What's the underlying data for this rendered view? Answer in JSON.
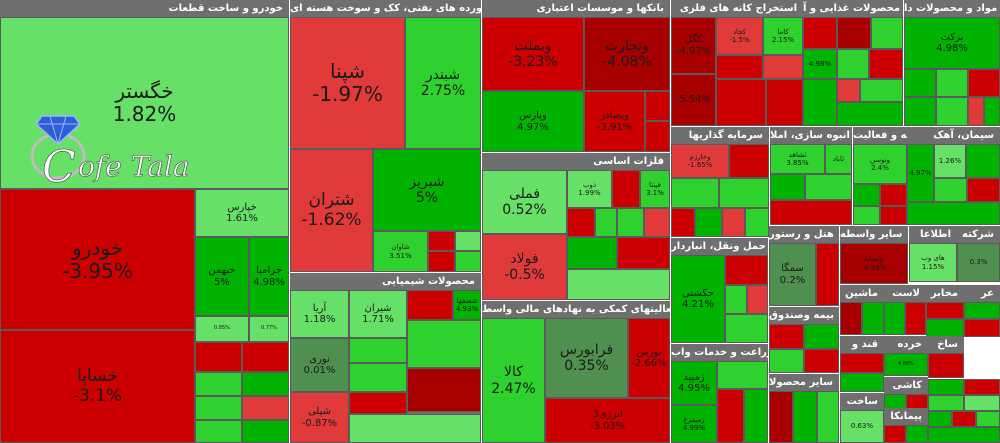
{
  "colors": {
    "up_strong": "#00b300",
    "up": "#2ed12e",
    "up_light": "#66e066",
    "down_light": "#e03a3a",
    "down": "#cc0000",
    "down_strong": "#a80000",
    "neutral": "#4f8f4f",
    "frame": "#6f6f6f"
  },
  "watermark": {
    "text_prefix": "C",
    "text": "ofe Tala"
  },
  "chart_data": {
    "type": "treemap",
    "metric": "daily price change (%)",
    "sectors": [
      {
        "id": "s1",
        "title": "خودرو و ساخت قطعات",
        "cells": [
          {
            "name": "خگستر",
            "pct": "1.82%",
            "v": 1.82
          },
          {
            "name": "خودرو",
            "pct": "-3.95%",
            "v": -3.95
          },
          {
            "name": "خساپا",
            "pct": "-3.1%",
            "v": -3.1
          },
          {
            "name": "خپارس",
            "pct": "1.61%",
            "v": 1.61
          },
          {
            "name": "خبهمن",
            "pct": "5%",
            "v": 5
          },
          {
            "name": "خزامیا",
            "pct": "4.98%",
            "v": 4.98
          },
          {
            "name": "",
            "pct": "0.85%",
            "v": 0.85
          },
          {
            "name": "",
            "pct": "0.77%",
            "v": 0.77
          },
          {
            "name": "",
            "pct": "",
            "v": -2.1
          },
          {
            "name": "",
            "pct": "",
            "v": -3.2
          },
          {
            "name": "",
            "pct": "",
            "v": 2.4
          },
          {
            "name": "",
            "pct": "",
            "v": 4.9
          },
          {
            "name": "",
            "pct": "",
            "v": 3.1
          },
          {
            "name": "",
            "pct": "",
            "v": -1.5
          },
          {
            "name": "",
            "pct": "",
            "v": 2.8
          },
          {
            "name": "",
            "pct": "",
            "v": 4.2
          }
        ]
      },
      {
        "id": "s2",
        "title": "فراورده های نفتی، کک و سوخت هسته ای",
        "cells": [
          {
            "name": "شپنا",
            "pct": "-1.97%",
            "v": -1.97
          },
          {
            "name": "شبندر",
            "pct": "2.75%",
            "v": 2.75
          },
          {
            "name": "شتران",
            "pct": "-1.62%",
            "v": -1.62
          },
          {
            "name": "شبریز",
            "pct": "5%",
            "v": 5
          },
          {
            "name": "شاوان",
            "pct": "3.51%",
            "v": 3.51
          },
          {
            "name": "",
            "pct": "",
            "v": -2.5
          },
          {
            "name": "",
            "pct": "",
            "v": 1.3
          },
          {
            "name": "",
            "pct": "",
            "v": -3.4
          },
          {
            "name": "",
            "pct": "",
            "v": 2.2
          }
        ]
      },
      {
        "id": "s3",
        "title": "بانکها و موسسات اعتباری",
        "cells": [
          {
            "name": "وبملت",
            "pct": "-3.23%",
            "v": -3.23
          },
          {
            "name": "وتجارت",
            "pct": "-4.08%",
            "v": -4.08
          },
          {
            "name": "وپارس",
            "pct": "4.97%",
            "v": 4.97
          },
          {
            "name": "وبصادر",
            "pct": "-3.91%",
            "v": -3.91
          },
          {
            "name": "",
            "pct": "",
            "v": -2.0
          },
          {
            "name": "",
            "pct": "",
            "v": -2.8
          }
        ]
      },
      {
        "id": "s4",
        "title": "استخراج کانه های فلزی",
        "cells": [
          {
            "name": "کگل",
            "pct": "-4.97%",
            "v": -4.97
          },
          {
            "name": "کچاد",
            "pct": "-1.5%",
            "v": -1.5
          },
          {
            "name": "کاما",
            "pct": "2.15%",
            "v": 2.15
          },
          {
            "name": "",
            "pct": "",
            "v": -3.1
          },
          {
            "name": "",
            "pct": "",
            "v": -1.9
          },
          {
            "name": "",
            "pct": "-5.54%",
            "v": -5.54
          },
          {
            "name": "",
            "pct": "",
            "v": -2.6
          },
          {
            "name": "",
            "pct": "",
            "v": -3.7
          }
        ]
      },
      {
        "id": "s5",
        "title": "محصولات غذایی و آ",
        "cells": [
          {
            "name": "",
            "pct": "",
            "v": -3.6
          },
          {
            "name": "",
            "pct": "",
            "v": -4.1
          },
          {
            "name": "",
            "pct": "",
            "v": 2.6
          },
          {
            "name": "",
            "pct": "4.98%",
            "v": 4.98
          },
          {
            "name": "",
            "pct": "",
            "v": 3.4
          },
          {
            "name": "",
            "pct": "",
            "v": -2.2
          },
          {
            "name": "",
            "pct": "",
            "v": 4.5
          },
          {
            "name": "",
            "pct": "",
            "v": -1.8
          },
          {
            "name": "",
            "pct": "",
            "v": 2.9
          },
          {
            "name": "",
            "pct": "",
            "v": 4.1
          }
        ]
      },
      {
        "id": "s6",
        "title": "مواد و محصولات دا",
        "cells": [
          {
            "name": "برکت",
            "pct": "4.98%",
            "v": 4.98
          },
          {
            "name": "",
            "pct": "",
            "v": 4.3
          },
          {
            "name": "",
            "pct": "",
            "v": 3.9
          },
          {
            "name": "",
            "pct": "",
            "v": -2.6
          },
          {
            "name": "",
            "pct": "",
            "v": 4.7
          },
          {
            "name": "",
            "pct": "",
            "v": 3.3
          },
          {
            "name": "",
            "pct": "",
            "v": -1.4
          },
          {
            "name": "",
            "pct": "",
            "v": 4.9
          }
        ]
      },
      {
        "id": "s7",
        "title": "فلزات اساسی",
        "cells": [
          {
            "name": "فملی",
            "pct": "0.52%",
            "v": 0.52
          },
          {
            "name": "فولاد",
            "pct": "-0.5%",
            "v": -0.5
          },
          {
            "name": "ذوب",
            "pct": "1.99%",
            "v": 1.99
          },
          {
            "name": "",
            "pct": "",
            "v": -3.5
          },
          {
            "name": "فپنتا",
            "pct": "3.1%",
            "v": 3.1
          },
          {
            "name": "",
            "pct": "",
            "v": -2.7
          },
          {
            "name": "",
            "pct": "",
            "v": 3.8
          },
          {
            "name": "",
            "pct": "",
            "v": 2.2
          },
          {
            "name": "",
            "pct": "",
            "v": -1.6
          },
          {
            "name": "",
            "pct": "",
            "v": 4.1
          },
          {
            "name": "",
            "pct": "",
            "v": -3.0
          },
          {
            "name": "",
            "pct": "",
            "v": 1.1
          }
        ]
      },
      {
        "id": "s8",
        "title": "سرمایه گذاریها",
        "cells": [
          {
            "name": "وخارزم",
            "pct": "-1.65%",
            "v": -1.65
          },
          {
            "name": "",
            "pct": "",
            "v": -2.3
          },
          {
            "name": "",
            "pct": "",
            "v": 3.6
          },
          {
            "name": "",
            "pct": "",
            "v": 2.4
          },
          {
            "name": "",
            "pct": "",
            "v": -3.4
          },
          {
            "name": "",
            "pct": "",
            "v": 4.2
          },
          {
            "name": "",
            "pct": "",
            "v": -1.2
          },
          {
            "name": "",
            "pct": "",
            "v": 3.1
          }
        ]
      },
      {
        "id": "s9",
        "title": "انبوه سازی، املا",
        "cells": [
          {
            "name": "ثشاهد",
            "pct": "3.85%",
            "v": 3.85
          },
          {
            "name": "ثاباد",
            "pct": "",
            "v": 2.2
          },
          {
            "name": "",
            "pct": "",
            "v": 4.1
          },
          {
            "name": "",
            "pct": "",
            "v": 2.37
          },
          {
            "name": "",
            "pct": "",
            "v": -2.9
          }
        ]
      },
      {
        "id": "s10",
        "title": "رایانه و فعالیت",
        "cells": [
          {
            "name": "ونوسن",
            "pct": "2.4%",
            "v": 2.4
          },
          {
            "name": "",
            "pct": "",
            "v": 4.4
          },
          {
            "name": "",
            "pct": "",
            "v": -2.2
          },
          {
            "name": "",
            "pct": "",
            "v": 3.0
          },
          {
            "name": "",
            "pct": "",
            "v": -3.8
          }
        ]
      },
      {
        "id": "s11",
        "title": "سیمان، آهک",
        "cells": [
          {
            "name": "",
            "pct": "4.97%",
            "v": 4.97
          },
          {
            "name": "",
            "pct": "1.26%",
            "v": 1.26
          },
          {
            "name": "",
            "pct": "",
            "v": 4.2
          },
          {
            "name": "",
            "pct": "",
            "v": 3.2
          },
          {
            "name": "",
            "pct": "",
            "v": -2.9
          },
          {
            "name": "",
            "pct": "",
            "v": 4.6
          }
        ]
      },
      {
        "id": "s12",
        "title": "محصولات شیمیایی",
        "cells": [
          {
            "name": "آریا",
            "pct": "1.18%",
            "v": 1.18
          },
          {
            "name": "شیران",
            "pct": "1.71%",
            "v": 1.71
          },
          {
            "name": "",
            "pct": "",
            "v": -3.6
          },
          {
            "name": "شصفها",
            "pct": "4.93%",
            "v": 4.93
          },
          {
            "name": "نوری",
            "pct": "0.01%",
            "v": 0.01
          },
          {
            "name": "",
            "pct": "",
            "v": 2.5
          },
          {
            "name": "",
            "pct": "",
            "v": 3.3
          },
          {
            "name": "شپلی",
            "pct": "-0.87%",
            "v": -0.87
          },
          {
            "name": "",
            "pct": "",
            "v": -2.1
          },
          {
            "name": "",
            "pct": "",
            "v": 3.9
          },
          {
            "name": "",
            "pct": "",
            "v": -4.0
          },
          {
            "name": "",
            "pct": "",
            "v": 1.8
          }
        ]
      },
      {
        "id": "s13",
        "title": "فعالیتهای کمکی به نهادهای مالی واسط",
        "cells": [
          {
            "name": "کالا",
            "pct": "2.47%",
            "v": 2.47
          },
          {
            "name": "فرابورس",
            "pct": "0.35%",
            "v": 0.35
          },
          {
            "name": "بورس",
            "pct": "-2.66%",
            "v": -2.66
          },
          {
            "name": "انرژی3",
            "pct": "-3.03%",
            "v": -3.03
          }
        ]
      },
      {
        "id": "s14",
        "title": "حمل ونقل، انباردار",
        "cells": [
          {
            "name": "حکشتی",
            "pct": "4.21%",
            "v": 4.21
          },
          {
            "name": "",
            "pct": "",
            "v": -3.2
          },
          {
            "name": "",
            "pct": "",
            "v": 2.6
          },
          {
            "name": "",
            "pct": "",
            "v": -1.7
          },
          {
            "name": "",
            "pct": "",
            "v": 3.9
          }
        ]
      },
      {
        "id": "s15",
        "title": "هتل و رستور",
        "cells": [
          {
            "name": "سمگا",
            "pct": "0.2%",
            "v": 0.2
          },
          {
            "name": "",
            "pct": "",
            "v": -2.8
          }
        ]
      },
      {
        "id": "s16",
        "title": "سایر واسطه",
        "cells": [
          {
            "name": "ولساپا",
            "pct": "-4.99%",
            "v": -4.99
          }
        ]
      },
      {
        "id": "s17",
        "title": "اطلاعا",
        "cells": [
          {
            "name": "های وب",
            "pct": "1.15%",
            "v": 1.15
          }
        ]
      },
      {
        "id": "s18",
        "title": "شرکته",
        "cells": [
          {
            "name": "",
            "pct": "0.3%",
            "v": 0.3
          }
        ]
      },
      {
        "id": "s19",
        "title": "زراعت و خدمات واب",
        "cells": [
          {
            "name": "زمپید",
            "pct": "4.95%",
            "v": 4.95
          },
          {
            "name": "زمیمرغ",
            "pct": "4.99%",
            "v": 4.99
          },
          {
            "name": "",
            "pct": "",
            "v": 3.3
          },
          {
            "name": "",
            "pct": "",
            "v": -2.4
          },
          {
            "name": "",
            "pct": "",
            "v": 4.6
          }
        ]
      },
      {
        "id": "s20",
        "title": "بیمه وصندوق",
        "cells": [
          {
            "name": "",
            "pct": "",
            "v": -3.6
          },
          {
            "name": "",
            "pct": "",
            "v": 4.84
          },
          {
            "name": "",
            "pct": "",
            "v": 2.5
          },
          {
            "name": "",
            "pct": "",
            "v": -2.0
          }
        ]
      },
      {
        "id": "s21",
        "title": "ماشین",
        "cells": [
          {
            "name": "",
            "pct": "",
            "v": -4.3
          },
          {
            "name": "",
            "pct": "",
            "v": 4.5
          }
        ]
      },
      {
        "id": "s22",
        "title": "لاست",
        "cells": [
          {
            "name": "",
            "pct": "",
            "v": 4.6
          },
          {
            "name": "",
            "pct": "",
            "v": -3.0
          }
        ]
      },
      {
        "id": "s23",
        "title": "مخابر",
        "cells": [
          {
            "name": "",
            "pct": "",
            "v": -3.9
          },
          {
            "name": "",
            "pct": "",
            "v": 4.2
          }
        ]
      },
      {
        "id": "s24",
        "title": "عر",
        "cells": [
          {
            "name": "",
            "pct": "",
            "v": 4.8
          },
          {
            "name": "",
            "pct": "",
            "v": -2.5
          }
        ]
      },
      {
        "id": "s25",
        "title": "قند و",
        "cells": [
          {
            "name": "",
            "pct": "",
            "v": -3.3
          },
          {
            "name": "",
            "pct": "",
            "v": 4.0
          }
        ]
      },
      {
        "id": "s26",
        "title": "خرده",
        "cells": [
          {
            "name": "",
            "pct": "4.68%",
            "v": 4.68
          }
        ]
      },
      {
        "id": "s27",
        "title": "ساخ",
        "cells": [
          {
            "name": "",
            "pct": "",
            "v": -2.7
          }
        ]
      },
      {
        "id": "s28",
        "title": "کاشی",
        "cells": [
          {
            "name": "",
            "pct": "",
            "v": 4.5
          },
          {
            "name": "",
            "pct": "",
            "v": -3.4
          }
        ]
      },
      {
        "id": "s29",
        "title": "سایر محصولا",
        "cells": [
          {
            "name": "",
            "pct": "",
            "v": -4.1
          },
          {
            "name": "",
            "pct": "",
            "v": 4.3
          },
          {
            "name": "",
            "pct": "",
            "v": 2.1
          }
        ]
      },
      {
        "id": "s30",
        "title": "ساخت",
        "cells": [
          {
            "name": "",
            "pct": "0.63%",
            "v": 0.63
          }
        ]
      },
      {
        "id": "s31",
        "title": "پیمانکا",
        "cells": [
          {
            "name": "",
            "pct": "",
            "v": -3.6
          },
          {
            "name": "",
            "pct": "",
            "v": 4.1
          }
        ]
      },
      {
        "id": "s32",
        "title": "",
        "cells": [
          {
            "name": "",
            "pct": "",
            "v": 4.6
          },
          {
            "name": "",
            "pct": "",
            "v": -2.4
          },
          {
            "name": "",
            "pct": "",
            "v": 3.8
          },
          {
            "name": "",
            "pct": "",
            "v": 1.2
          },
          {
            "name": "",
            "pct": "",
            "v": 4.4
          },
          {
            "name": "",
            "pct": "",
            "v": -3.1
          },
          {
            "name": "",
            "pct": "",
            "v": 2.6
          },
          {
            "name": "",
            "pct": "",
            "v": 4.9
          }
        ]
      }
    ]
  }
}
